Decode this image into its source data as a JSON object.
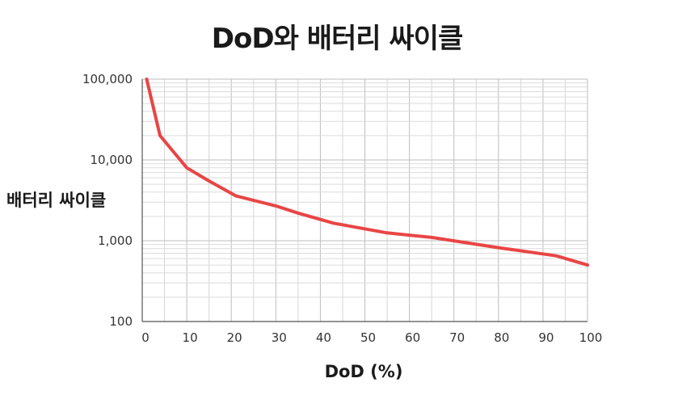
{
  "chart_data": {
    "type": "line",
    "title": "DoD와 배터리 싸이클",
    "xlabel": "DoD (%)",
    "ylabel": "배터리 싸이클",
    "xlim": [
      0,
      100
    ],
    "ylim": [
      100,
      100000
    ],
    "yscale": "log",
    "grid": true,
    "x_ticks": [
      0,
      10,
      20,
      30,
      40,
      50,
      60,
      70,
      80,
      90,
      100
    ],
    "y_ticks": [
      100,
      1000,
      10000,
      100000
    ],
    "y_tick_labels": [
      "100",
      "1,000",
      "10,000",
      "100,000"
    ],
    "series": [
      {
        "color": "#e94545",
        "x": [
          1,
          4,
          10,
          15,
          21,
          30,
          35,
          43,
          55,
          65,
          80,
          93,
          100
        ],
        "y": [
          100000,
          20000,
          8000,
          5500,
          3600,
          2700,
          2200,
          1650,
          1250,
          1100,
          820,
          650,
          500
        ]
      }
    ]
  }
}
